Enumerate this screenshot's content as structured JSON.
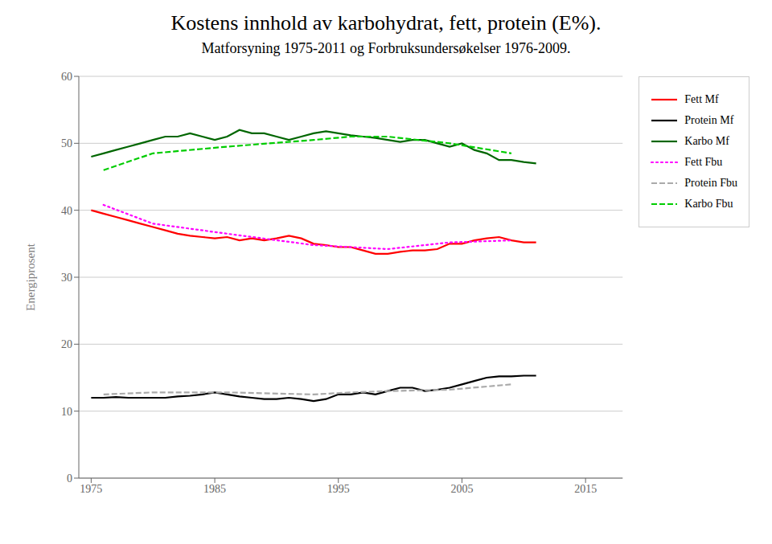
{
  "chart_data": {
    "type": "line",
    "title": "Kostens innhold av karbohydrat, fett, protein (E%).",
    "subtitle": "Matforsyning 1975-2011 og Forbruksundersøkelser 1976-2009.",
    "y_label": "Energiprosent",
    "xlim": [
      1974,
      2018
    ],
    "ylim": [
      0,
      60
    ],
    "xticks": [
      1975,
      1985,
      1995,
      2005,
      2015
    ],
    "yticks": [
      0,
      10,
      20,
      30,
      40,
      50,
      60
    ],
    "grid": true,
    "legend": "right",
    "series": [
      {
        "name": "Fett Mf",
        "color": "#ff0000",
        "line_style": "solid",
        "x": [
          1975,
          1976,
          1977,
          1978,
          1979,
          1980,
          1981,
          1982,
          1983,
          1984,
          1985,
          1986,
          1987,
          1988,
          1989,
          1990,
          1991,
          1992,
          1993,
          1994,
          1995,
          1996,
          1997,
          1998,
          1999,
          2000,
          2001,
          2002,
          2003,
          2004,
          2005,
          2006,
          2007,
          2008,
          2009,
          2010,
          2011
        ],
        "values": [
          40.0,
          39.5,
          39.0,
          38.5,
          38.0,
          37.5,
          37.0,
          36.5,
          36.2,
          36.0,
          35.8,
          36.0,
          35.5,
          35.8,
          35.5,
          35.8,
          36.2,
          35.8,
          35.0,
          34.8,
          34.5,
          34.5,
          34.0,
          33.5,
          33.5,
          33.8,
          34.0,
          34.0,
          34.2,
          35.0,
          35.0,
          35.5,
          35.8,
          36.0,
          35.5,
          35.2,
          35.2
        ]
      },
      {
        "name": "Protein Mf",
        "color": "#000000",
        "line_style": "solid",
        "x": [
          1975,
          1976,
          1977,
          1978,
          1979,
          1980,
          1981,
          1982,
          1983,
          1984,
          1985,
          1986,
          1987,
          1988,
          1989,
          1990,
          1991,
          1992,
          1993,
          1994,
          1995,
          1996,
          1997,
          1998,
          1999,
          2000,
          2001,
          2002,
          2003,
          2004,
          2005,
          2006,
          2007,
          2008,
          2009,
          2010,
          2011
        ],
        "values": [
          12.0,
          12.0,
          12.1,
          12.0,
          12.0,
          12.0,
          12.0,
          12.2,
          12.3,
          12.5,
          12.8,
          12.5,
          12.2,
          12.0,
          11.8,
          11.8,
          12.0,
          11.8,
          11.5,
          11.8,
          12.5,
          12.5,
          12.8,
          12.5,
          13.0,
          13.5,
          13.5,
          13.0,
          13.2,
          13.5,
          14.0,
          14.5,
          15.0,
          15.2,
          15.2,
          15.3,
          15.3
        ]
      },
      {
        "name": "Karbo Mf",
        "color": "#006600",
        "line_style": "solid",
        "x": [
          1975,
          1976,
          1977,
          1978,
          1979,
          1980,
          1981,
          1982,
          1983,
          1984,
          1985,
          1986,
          1987,
          1988,
          1989,
          1990,
          1991,
          1992,
          1993,
          1994,
          1995,
          1996,
          1997,
          1998,
          1999,
          2000,
          2001,
          2002,
          2003,
          2004,
          2005,
          2006,
          2007,
          2008,
          2009,
          2010,
          2011
        ],
        "values": [
          48.0,
          48.5,
          49.0,
          49.5,
          50.0,
          50.5,
          51.0,
          51.0,
          51.5,
          51.0,
          50.5,
          51.0,
          52.0,
          51.5,
          51.5,
          51.0,
          50.5,
          51.0,
          51.5,
          51.8,
          51.5,
          51.2,
          51.0,
          50.8,
          50.5,
          50.2,
          50.5,
          50.5,
          50.0,
          49.5,
          50.0,
          49.0,
          48.5,
          47.5,
          47.5,
          47.2,
          47.0
        ]
      },
      {
        "name": "Fett Fbu",
        "color": "#ff00ff",
        "line_style": "dotted",
        "x": [
          1976,
          1980,
          1986,
          1993,
          1996,
          1999,
          2004,
          2009
        ],
        "values": [
          40.8,
          38.0,
          36.5,
          34.8,
          34.5,
          34.2,
          35.2,
          35.5
        ]
      },
      {
        "name": "Protein Fbu",
        "color": "#aaaaaa",
        "line_style": "dashed",
        "x": [
          1976,
          1980,
          1986,
          1993,
          1996,
          1999,
          2004,
          2009
        ],
        "values": [
          12.5,
          12.8,
          12.8,
          12.5,
          12.8,
          13.0,
          13.2,
          14.0
        ]
      },
      {
        "name": "Karbo Fbu",
        "color": "#00cc00",
        "line_style": "dashed",
        "x": [
          1976,
          1980,
          1986,
          1993,
          1996,
          1999,
          2004,
          2009
        ],
        "values": [
          46.0,
          48.5,
          49.5,
          50.5,
          51.0,
          51.0,
          50.0,
          48.5
        ]
      }
    ]
  }
}
